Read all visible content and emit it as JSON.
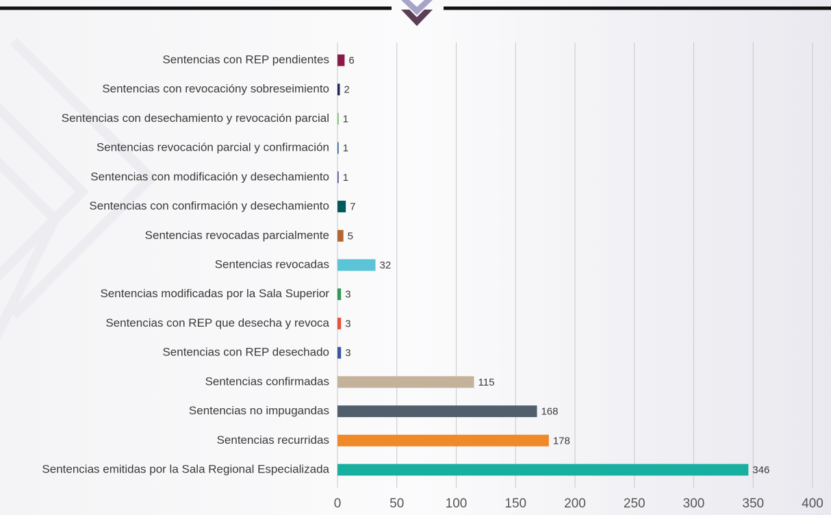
{
  "chart_data": {
    "type": "hbar",
    "categories": [
      "Sentencias con REP pendientes",
      "Sentencias con revocacióny sobreseimiento",
      "Sentencias con desechamiento y revocación parcial",
      "Sentencias revocación parcial y confirmación",
      "Sentencias con modificación y desechamiento",
      "Sentencias con confirmación y desechamiento",
      "Sentencias revocadas parcialmente",
      "Sentencias revocadas",
      "Sentencias modificadas por la Sala Superior",
      "Sentencias con REP que desecha y revoca",
      "Sentencias con REP desechado",
      "Sentencias confirmadas",
      "Sentencias no impugandas",
      "Sentencias recurridas",
      "Sentencias emitidas por la Sala Regional Especializada"
    ],
    "values": [
      6,
      2,
      1,
      1,
      1,
      7,
      5,
      32,
      3,
      3,
      3,
      115,
      168,
      178,
      346
    ],
    "colors": [
      "#8b1a4a",
      "#1f2a55",
      "#7dc36b",
      "#2e6fa8",
      "#6a4c9c",
      "#005a5b",
      "#b5652f",
      "#5bc4d6",
      "#2f9a5a",
      "#e8513a",
      "#3b55a3",
      "#c4b29a",
      "#505f6b",
      "#f0892a",
      "#17b0a0"
    ],
    "xlim": [
      0,
      400
    ],
    "xticks": [
      0,
      50,
      100,
      150,
      200,
      250,
      300,
      350,
      400
    ],
    "grid": true
  }
}
